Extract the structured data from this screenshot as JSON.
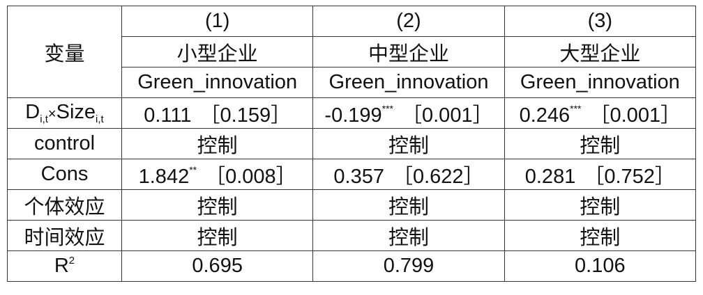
{
  "table": {
    "header": {
      "variable": "变量",
      "columns": [
        {
          "number": "(1)",
          "group": "小型企业",
          "dependent": "Green_innovation"
        },
        {
          "number": "(2)",
          "group": "中型企业",
          "dependent": "Green_innovation"
        },
        {
          "number": "(3)",
          "group": "大型企业",
          "dependent": "Green_innovation"
        }
      ]
    },
    "rows": [
      {
        "label": {
          "parts": [
            "D",
            "i,t",
            "×",
            "Size",
            "i,t"
          ]
        },
        "cells": [
          {
            "coef": "0.111",
            "p": "［0.159］"
          },
          {
            "coef": "-0.199",
            "stars": "***",
            "p": "［0.001］"
          },
          {
            "coef": "0.246",
            "stars": "***",
            "p": "［0.001］"
          }
        ]
      },
      {
        "label": "control",
        "cells": [
          "控制",
          "控制",
          "控制"
        ]
      },
      {
        "label": "Cons",
        "cells": [
          {
            "coef": "1.842",
            "stars": "**",
            "p": "［0.008］"
          },
          {
            "coef": "0.357",
            "p": "［0.622］"
          },
          {
            "coef": "0.281",
            "p": "［0.752］"
          }
        ]
      },
      {
        "label": "个体效应",
        "cells": [
          "控制",
          "控制",
          "控制"
        ]
      },
      {
        "label": "时间效应",
        "cells": [
          "控制",
          "控制",
          "控制"
        ]
      },
      {
        "label": {
          "parts": [
            "R",
            "2"
          ]
        },
        "cells": [
          "0.695",
          "0.799",
          "0.106"
        ]
      }
    ]
  }
}
